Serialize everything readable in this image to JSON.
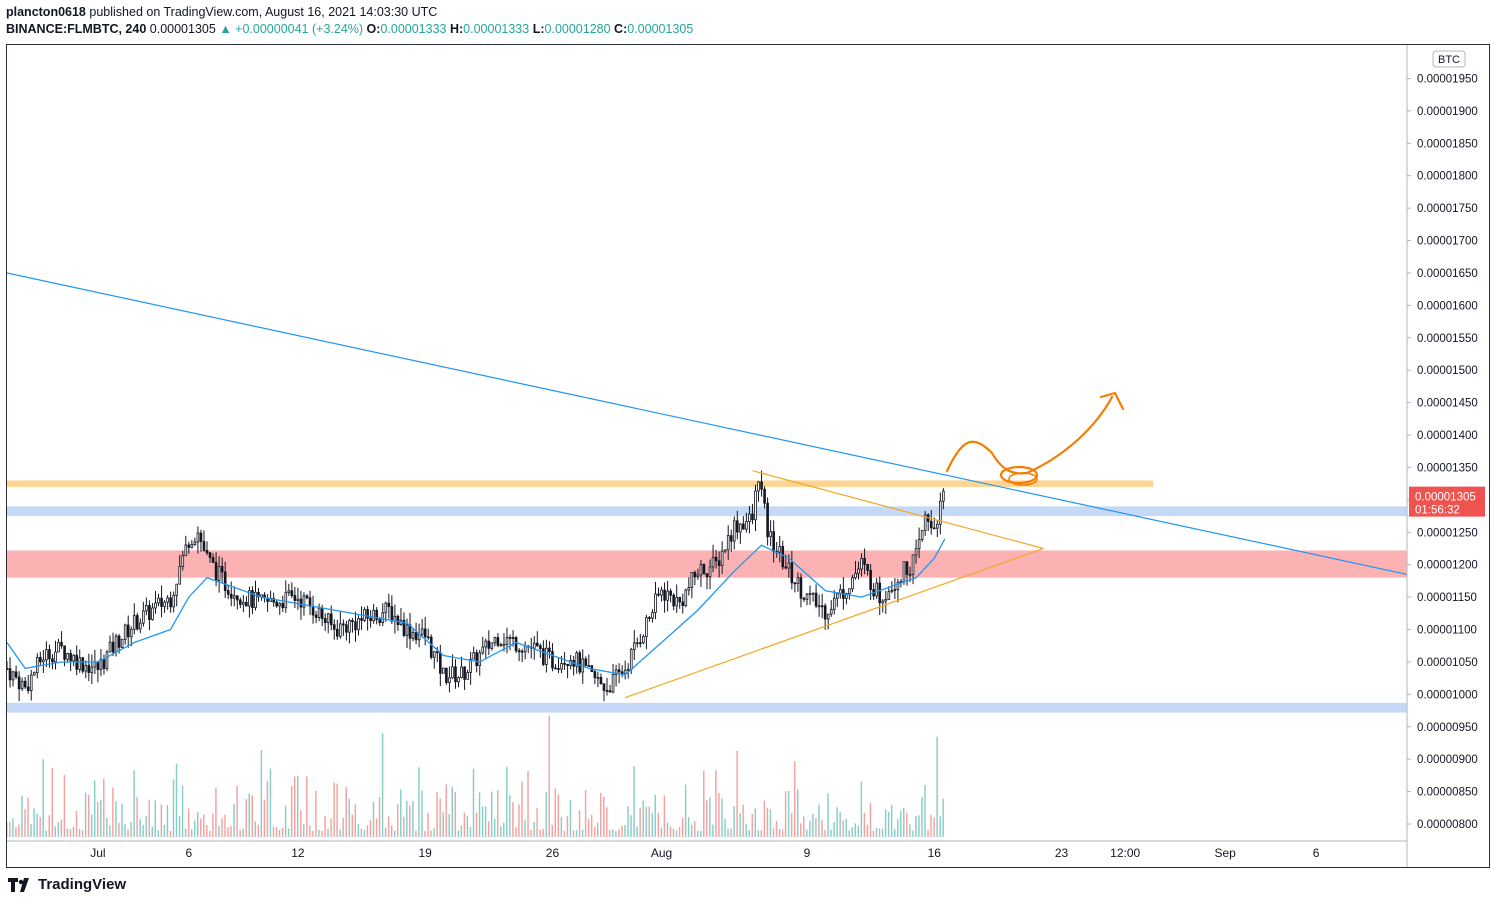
{
  "header": {
    "publisher": "plancton0618",
    "published_text": "published on TradingView.com, August 16, 2021 14:03:30 UTC",
    "symbol": "BINANCE:FLMBTC, 240",
    "last": "0.00001305",
    "change": "+0.00000041 (+3.24%)",
    "o_label": "O:",
    "o": "0.00001333",
    "h_label": "H:",
    "h": "0.00001333",
    "l_label": "L:",
    "l": "0.00001280",
    "c_label": "C:",
    "c": "0.00001305"
  },
  "price_axis": {
    "unit": "BTC",
    "labels": [
      "0.00001950",
      "0.00001900",
      "0.00001850",
      "0.00001800",
      "0.00001750",
      "0.00001700",
      "0.00001650",
      "0.00001600",
      "0.00001550",
      "0.00001500",
      "0.00001450",
      "0.00001400",
      "0.00001350",
      "0.00001300",
      "0.00001250",
      "0.00001200",
      "0.00001150",
      "0.00001100",
      "0.00001050",
      "0.00001000",
      "0.00000950",
      "0.00000900",
      "0.00000850",
      "0.00000800"
    ],
    "last_price_label": "0.00001305",
    "countdown": "01:56:32"
  },
  "time_axis": {
    "labels": [
      "Jul",
      "6",
      "12",
      "19",
      "26",
      "Aug",
      "9",
      "16",
      "23",
      "12:00",
      "Sep",
      "6"
    ]
  },
  "colors": {
    "up": "#26a69a",
    "down": "#ef5350",
    "candle_body": "#131722",
    "ma": "#2196f3",
    "trendline": "#2196f3",
    "triangle": "#f5a623",
    "zone_orange": "#ffcc80",
    "zone_blue": "#bbd2f5",
    "zone_red": "#fca4a4",
    "drawing": "#f57c00"
  },
  "chart_data": {
    "type": "candlestick",
    "interval": "240",
    "ylim": [
      7.8e-06,
      1.98e-05
    ],
    "x_range": [
      "2021-06-26",
      "2021-09-11"
    ],
    "x_ticks": [
      {
        "label": "Jul",
        "date": "2021-07-01"
      },
      {
        "label": "6",
        "date": "2021-07-06"
      },
      {
        "label": "12",
        "date": "2021-07-12"
      },
      {
        "label": "19",
        "date": "2021-07-19"
      },
      {
        "label": "26",
        "date": "2021-07-26"
      },
      {
        "label": "Aug",
        "date": "2021-08-01"
      },
      {
        "label": "9",
        "date": "2021-08-09"
      },
      {
        "label": "16",
        "date": "2021-08-16"
      },
      {
        "label": "23",
        "date": "2021-08-23"
      },
      {
        "label": "12:00",
        "date": "2021-08-26 12:00"
      },
      {
        "label": "Sep",
        "date": "2021-09-01"
      },
      {
        "label": "6",
        "date": "2021-09-06"
      }
    ],
    "close_path": [
      [
        "2021-06-26",
        1.04e-05
      ],
      [
        "2021-06-27",
        1.01e-05
      ],
      [
        "2021-06-28",
        1.06e-05
      ],
      [
        "2021-06-29",
        1.07e-05
      ],
      [
        "2021-06-30",
        1.05e-05
      ],
      [
        "2021-07-01",
        1.04e-05
      ],
      [
        "2021-07-02",
        1.08e-05
      ],
      [
        "2021-07-03",
        1.11e-05
      ],
      [
        "2021-07-04",
        1.13e-05
      ],
      [
        "2021-07-05",
        1.15e-05
      ],
      [
        "2021-07-06",
        1.24e-05
      ],
      [
        "2021-07-06 12:00",
        1.25e-05
      ],
      [
        "2021-07-07",
        1.21e-05
      ],
      [
        "2021-07-08",
        1.17e-05
      ],
      [
        "2021-07-09",
        1.15e-05
      ],
      [
        "2021-07-10",
        1.14e-05
      ],
      [
        "2021-07-12",
        1.15e-05
      ],
      [
        "2021-07-13",
        1.13e-05
      ],
      [
        "2021-07-14",
        1.1e-05
      ],
      [
        "2021-07-15",
        1.11e-05
      ],
      [
        "2021-07-16",
        1.12e-05
      ],
      [
        "2021-07-17",
        1.13e-05
      ],
      [
        "2021-07-18",
        1.1e-05
      ],
      [
        "2021-07-19",
        1.09e-05
      ],
      [
        "2021-07-20",
        1.03e-05
      ],
      [
        "2021-07-21",
        1.03e-05
      ],
      [
        "2021-07-22",
        1.06e-05
      ],
      [
        "2021-07-23",
        1.09e-05
      ],
      [
        "2021-07-24",
        1.08e-05
      ],
      [
        "2021-07-25",
        1.07e-05
      ],
      [
        "2021-07-26",
        1.05e-05
      ],
      [
        "2021-07-27",
        1.06e-05
      ],
      [
        "2021-07-28",
        1.03e-05
      ],
      [
        "2021-07-29",
        1.01e-05
      ],
      [
        "2021-07-30",
        1.04e-05
      ],
      [
        "2021-07-31",
        1.1e-05
      ],
      [
        "2021-08-01",
        1.16e-05
      ],
      [
        "2021-08-02",
        1.14e-05
      ],
      [
        "2021-08-03",
        1.19e-05
      ],
      [
        "2021-08-04",
        1.2e-05
      ],
      [
        "2021-08-05",
        1.26e-05
      ],
      [
        "2021-08-06",
        1.27e-05
      ],
      [
        "2021-08-06 08:00",
        1.34e-05
      ],
      [
        "2021-08-06 20:00",
        1.25e-05
      ],
      [
        "2021-08-07",
        1.24e-05
      ],
      [
        "2021-08-08",
        1.19e-05
      ],
      [
        "2021-08-09",
        1.15e-05
      ],
      [
        "2021-08-10",
        1.13e-05
      ],
      [
        "2021-08-11",
        1.16e-05
      ],
      [
        "2021-08-12",
        1.2e-05
      ],
      [
        "2021-08-13",
        1.15e-05
      ],
      [
        "2021-08-14",
        1.18e-05
      ],
      [
        "2021-08-15",
        1.21e-05
      ],
      [
        "2021-08-15 12:00",
        1.27e-05
      ],
      [
        "2021-08-16",
        1.26e-05
      ],
      [
        "2021-08-16 12:00",
        1.3e-05
      ],
      [
        "2021-08-16 14:00",
        1.305e-05
      ]
    ],
    "ma_path": [
      [
        "2021-06-26",
        1.08e-05
      ],
      [
        "2021-06-27",
        1.04e-05
      ],
      [
        "2021-06-29",
        1.05e-05
      ],
      [
        "2021-07-01",
        1.05e-05
      ],
      [
        "2021-07-03",
        1.08e-05
      ],
      [
        "2021-07-05",
        1.1e-05
      ],
      [
        "2021-07-06",
        1.15e-05
      ],
      [
        "2021-07-07",
        1.18e-05
      ],
      [
        "2021-07-08",
        1.17e-05
      ],
      [
        "2021-07-10",
        1.15e-05
      ],
      [
        "2021-07-12",
        1.14e-05
      ],
      [
        "2021-07-14",
        1.13e-05
      ],
      [
        "2021-07-16",
        1.12e-05
      ],
      [
        "2021-07-18",
        1.11e-05
      ],
      [
        "2021-07-20",
        1.06e-05
      ],
      [
        "2021-07-22",
        1.05e-05
      ],
      [
        "2021-07-24",
        1.08e-05
      ],
      [
        "2021-07-26",
        1.06e-05
      ],
      [
        "2021-07-28",
        1.04e-05
      ],
      [
        "2021-07-30",
        1.03e-05
      ],
      [
        "2021-08-01",
        1.08e-05
      ],
      [
        "2021-08-03",
        1.13e-05
      ],
      [
        "2021-08-05",
        1.19e-05
      ],
      [
        "2021-08-06 12:00",
        1.23e-05
      ],
      [
        "2021-08-08",
        1.21e-05
      ],
      [
        "2021-08-10",
        1.16e-05
      ],
      [
        "2021-08-12",
        1.15e-05
      ],
      [
        "2021-08-14",
        1.17e-05
      ],
      [
        "2021-08-15",
        1.18e-05
      ],
      [
        "2021-08-16",
        1.21e-05
      ],
      [
        "2021-08-16 14:00",
        1.24e-05
      ]
    ],
    "drawings": {
      "descending_trendline": {
        "from": [
          "2021-06-26",
          1.65e-05
        ],
        "to": [
          "2021-09-11",
          1.185e-05
        ]
      },
      "triangle_upper": {
        "from": [
          "2021-08-06",
          1.345e-05
        ],
        "to": [
          "2021-08-22",
          1.225e-05
        ]
      },
      "triangle_lower": {
        "from": [
          "2021-07-30",
          9.95e-06
        ],
        "to": [
          "2021-08-22",
          1.225e-05
        ]
      },
      "zone_orange": [
        1.32e-05,
        1.33e-05
      ],
      "zone_blue_upper": [
        1.275e-05,
        1.29e-05
      ],
      "zone_red": [
        1.18e-05,
        1.222e-05
      ],
      "zone_blue_lower": [
        9.72e-06,
        9.87e-06
      ]
    },
    "volume_histogram": true
  }
}
